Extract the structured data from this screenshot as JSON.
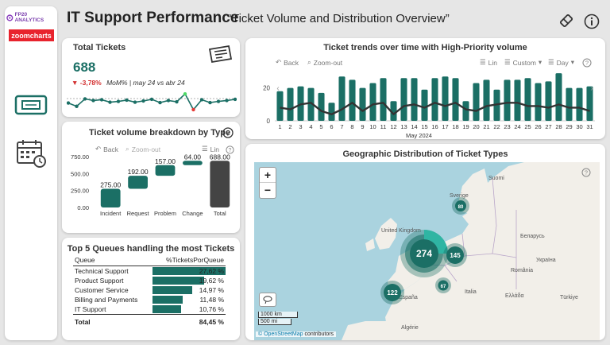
{
  "header": {
    "logo_text": "FP20 ANALYTICS",
    "logo2_text": "zoomcharts",
    "title": "IT Support Performance",
    "subtitle": "“Ticket Volume and Distribution Overview”"
  },
  "total_tickets": {
    "title": "Total Tickets",
    "value": "688",
    "delta": "▼ -3,78%",
    "delta_desc": "MoM% | may 24 vs abr 24",
    "sparkline": [
      4,
      3.2,
      5,
      4.6,
      4.8,
      4.2,
      4.4,
      4.7,
      4.2,
      4.5,
      4.9,
      4.1,
      4.6,
      4.3,
      6.2,
      2.4,
      4.8,
      4.1,
      4.4,
      4.6,
      4.9
    ]
  },
  "trend": {
    "title": "Ticket trends over time with High-Priority volume",
    "back": "Back",
    "zoom_out": "Zoom-out",
    "lin": "Lin",
    "custom": "Custom",
    "day": "Day",
    "x_title": "May 2024",
    "y_ticks": [
      "20",
      "0"
    ],
    "days": [
      "1",
      "2",
      "3",
      "4",
      "5",
      "6",
      "7",
      "8",
      "9",
      "10",
      "11",
      "12",
      "13",
      "14",
      "15",
      "16",
      "17",
      "18",
      "19",
      "20",
      "21",
      "22",
      "23",
      "24",
      "25",
      "26",
      "27",
      "28",
      "29",
      "30",
      "31"
    ]
  },
  "breakdown": {
    "title": "Ticket volume breakdown by Type",
    "back": "Back",
    "zoom_out": "Zoom-out",
    "lin": "Lin"
  },
  "queues": {
    "title": "Top 5 Queues handling the most Tickets",
    "col_queue": "Queue",
    "col_pct": "%TicketsPorQueue",
    "rows": [
      {
        "queue": "Technical Support",
        "pct": "27,62 %"
      },
      {
        "queue": "Product Support",
        "pct": "19,62 %"
      },
      {
        "queue": "Customer Service",
        "pct": "14,97 %"
      },
      {
        "queue": "Billing and Payments",
        "pct": "11,48 %"
      },
      {
        "queue": "IT Support",
        "pct": "10,76 %"
      }
    ],
    "total_label": "Total",
    "total_value": "84,45 %"
  },
  "geo": {
    "title": "Geographic Distribution of Ticket Types",
    "zoom_in": "+",
    "zoom_out": "−",
    "scale_km": "1000 km",
    "scale_mi": "500 mi",
    "attribution_osm": "© OpenStreetMap",
    "attribution_rest": " contributors",
    "map_labels": {
      "sverige": "Sverige",
      "uk": "United Kingdom",
      "belarus": "Беларусь",
      "ukraina": "Україна",
      "romania": "România",
      "espana": "España",
      "italia": "Italia",
      "ellada": "Ελλάδα",
      "turkiye": "Türkiye",
      "algerie": "Algérie",
      "sweden_r": "Suomi"
    },
    "clusters": [
      {
        "label": "274"
      },
      {
        "label": "145"
      },
      {
        "label": "122"
      },
      {
        "label": "80"
      },
      {
        "label": "67"
      }
    ]
  },
  "chart_data": [
    {
      "type": "bar",
      "title": "Ticket volume breakdown by Type",
      "categories": [
        "Incident",
        "Request",
        "Problem",
        "Change",
        "Total"
      ],
      "values": [
        275,
        192,
        157,
        64,
        688
      ],
      "labels": [
        "275.00",
        "192.00",
        "157.00",
        "64.00",
        "688.00"
      ],
      "y_ticks": [
        "750.00",
        "500.00",
        "250.00",
        "0.00"
      ],
      "ylim": [
        0,
        750
      ],
      "waterfall": true
    },
    {
      "type": "bar",
      "title": "Ticket trends over time with High-Priority volume",
      "categories": [
        "1",
        "2",
        "3",
        "4",
        "5",
        "6",
        "7",
        "8",
        "9",
        "10",
        "11",
        "12",
        "13",
        "14",
        "15",
        "16",
        "17",
        "18",
        "19",
        "20",
        "21",
        "22",
        "23",
        "24",
        "25",
        "26",
        "27",
        "28",
        "29",
        "30",
        "31"
      ],
      "series": [
        {
          "values": [
            18,
            20,
            21,
            20,
            17,
            11,
            27,
            25,
            20,
            23,
            26,
            12,
            26,
            26,
            19,
            26,
            27,
            26,
            12,
            23,
            25,
            19,
            25,
            25,
            26,
            23,
            24,
            29,
            20,
            20,
            21
          ]
        },
        {
          "values": [
            8,
            7,
            10,
            11,
            6,
            4,
            7,
            11,
            6,
            10,
            11,
            4,
            9,
            10,
            8,
            11,
            9,
            11,
            7,
            6,
            9,
            10,
            11,
            11,
            9,
            9,
            8,
            10,
            8,
            8,
            6
          ]
        }
      ],
      "ylim": [
        0,
        30
      ]
    }
  ]
}
